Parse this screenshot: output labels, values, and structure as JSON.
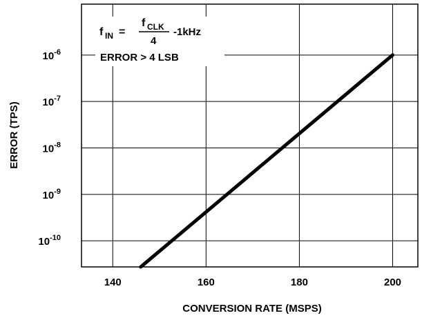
{
  "chart_data": {
    "type": "line",
    "xlabel": "CONVERSION RATE (MSPS)",
    "ylabel": "ERROR (TPS)",
    "y_scale": "log",
    "xlim": [
      133.3,
      205.4
    ],
    "ylim": [
      2.74e-11,
      1.25e-05
    ],
    "grid": true,
    "x_ticks": [
      140,
      160,
      180,
      200
    ],
    "x_tick_labels": [
      "140",
      "160",
      "180",
      "200"
    ],
    "y_ticks": [
      1e-10,
      1e-09,
      1e-08,
      1e-07,
      1e-06
    ],
    "y_tick_labels": [
      {
        "base": "10",
        "exp": "-10"
      },
      {
        "base": "10",
        "exp": "-9"
      },
      {
        "base": "10",
        "exp": "-8"
      },
      {
        "base": "10",
        "exp": "-7"
      },
      {
        "base": "10",
        "exp": "-6"
      }
    ],
    "series": [
      {
        "x": [
          146,
          200
        ],
        "y": [
          2.74e-11,
          1e-06
        ]
      }
    ],
    "annotation": {
      "f_sym": "f",
      "f_sub": "IN",
      "equals": "=",
      "num_sym": "f",
      "num_sub": "CLK",
      "den": "4",
      "suffix": "-1kHz",
      "line2": "ERROR > 4 LSB"
    }
  }
}
